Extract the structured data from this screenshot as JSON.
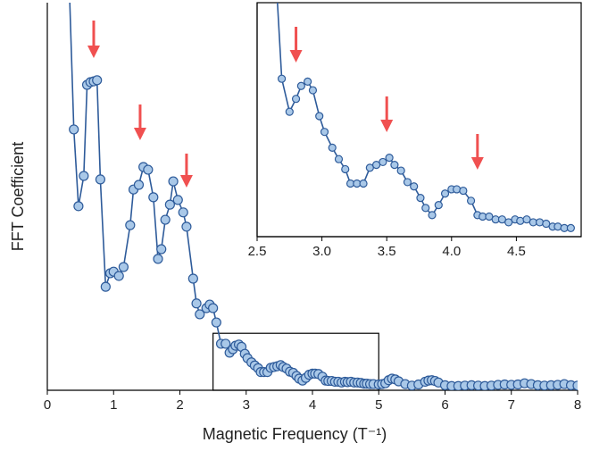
{
  "chart_data": [
    {
      "type": "line",
      "x_label": "Magnetic Frequency (T⁻¹)",
      "y_label": "FFT Coefficient",
      "xlim": [
        0,
        8
      ],
      "ylim": [
        0,
        100
      ],
      "xticks": [
        0,
        1,
        2,
        3,
        4,
        5,
        6,
        7,
        8
      ],
      "series": [
        {
          "color": "#2e5b9a",
          "marker_fill": "#a9c8e8",
          "x": [
            0.33,
            0.4,
            0.47,
            0.55,
            0.6,
            0.65,
            0.7,
            0.75,
            0.8,
            0.88,
            0.95,
            1.0,
            1.08,
            1.15,
            1.25,
            1.3,
            1.38,
            1.45,
            1.52,
            1.6,
            1.67,
            1.72,
            1.78,
            1.85,
            1.9,
            1.97,
            2.05,
            2.1,
            2.2,
            2.25,
            2.3,
            2.4,
            2.45,
            2.5,
            2.55,
            2.62,
            2.69,
            2.75,
            2.8,
            2.84,
            2.89,
            2.93,
            2.98,
            3.02,
            3.08,
            3.13,
            3.18,
            3.22,
            3.27,
            3.32,
            3.37,
            3.42,
            3.47,
            3.52,
            3.56,
            3.61,
            3.66,
            3.71,
            3.76,
            3.8,
            3.85,
            3.9,
            3.95,
            4.0,
            4.04,
            4.09,
            4.15,
            4.2,
            4.24,
            4.29,
            4.34,
            4.39,
            4.44,
            4.49,
            4.53,
            4.58,
            4.63,
            4.68,
            4.73,
            4.78,
            4.82,
            4.87,
            4.92,
            5.0,
            5.05,
            5.1,
            5.15,
            5.2,
            5.25,
            5.3,
            5.4,
            5.5,
            5.6,
            5.7,
            5.75,
            5.8,
            5.85,
            5.9,
            6.0,
            6.1,
            6.2,
            6.3,
            6.4,
            6.5,
            6.6,
            6.7,
            6.8,
            6.9,
            7.0,
            7.1,
            7.2,
            7.3,
            7.4,
            7.5,
            7.6,
            7.7,
            7.8,
            7.9,
            8.0
          ],
          "values": [
            105,
            67.3,
            47.5,
            55.3,
            78.8,
            79.5,
            79.7,
            80,
            54.4,
            26.7,
            30.2,
            30.6,
            29.5,
            31.8,
            42.6,
            51.8,
            53,
            57.6,
            56.9,
            49.8,
            33.9,
            36.4,
            44,
            47.9,
            53.9,
            49.1,
            45.9,
            42.2,
            28.8,
            22.4,
            19.6,
            21.2,
            22.1,
            21.2,
            17.5,
            12,
            12,
            9.7,
            10.6,
            11.5,
            11.8,
            11.2,
            9.4,
            8.3,
            7.2,
            6.4,
            5.7,
            4.7,
            4.7,
            4.7,
            5.8,
            6,
            6.2,
            6.5,
            6,
            5.6,
            4.8,
            4.5,
            3.7,
            3,
            2.5,
            3.2,
            4,
            4.3,
            4.3,
            4.2,
            3.5,
            2.5,
            2.4,
            2.4,
            2.2,
            2.2,
            2,
            2.2,
            2.1,
            2.2,
            2,
            2,
            1.9,
            1.7,
            1.7,
            1.6,
            1.6,
            1.5,
            1.6,
            1.8,
            2.6,
            3,
            2.8,
            2.3,
            1.6,
            1.2,
            1.5,
            2.2,
            2.5,
            2.6,
            2.4,
            2,
            1.3,
            1.1,
            1.1,
            1.2,
            1.3,
            1.2,
            1.1,
            1.2,
            1.4,
            1.5,
            1.4,
            1.5,
            1.8,
            1.6,
            1.3,
            1.2,
            1.3,
            1.4,
            1.6,
            1.3,
            1.2
          ]
        }
      ],
      "arrows_x": [
        0.7,
        1.4,
        2.1
      ],
      "arrow_color": "#f05050",
      "zoom_box": {
        "x": [
          2.5,
          5
        ],
        "y": [
          0,
          14.7
        ]
      }
    },
    {
      "type": "line",
      "xlim": [
        2.5,
        5
      ],
      "ylim": [
        1,
        17.3
      ],
      "xticks": [
        2.5,
        3.0,
        3.5,
        4.0,
        4.5
      ],
      "series": [
        {
          "color": "#2e5b9a",
          "marker_fill": "#a9c8e8",
          "x": [
            2.64,
            2.69,
            2.75,
            2.8,
            2.84,
            2.89,
            2.93,
            2.98,
            3.02,
            3.08,
            3.13,
            3.18,
            3.22,
            3.27,
            3.32,
            3.37,
            3.42,
            3.47,
            3.52,
            3.56,
            3.61,
            3.66,
            3.71,
            3.76,
            3.8,
            3.85,
            3.9,
            3.95,
            4.0,
            4.04,
            4.09,
            4.15,
            4.2,
            4.24,
            4.29,
            4.34,
            4.39,
            4.44,
            4.49,
            4.53,
            4.58,
            4.63,
            4.68,
            4.73,
            4.78,
            4.82,
            4.87,
            4.92
          ],
          "values": [
            20,
            12,
            9.7,
            10.6,
            11.5,
            11.8,
            11.2,
            9.4,
            8.3,
            7.2,
            6.4,
            5.7,
            4.7,
            4.7,
            4.7,
            5.8,
            6,
            6.2,
            6.5,
            6,
            5.6,
            4.8,
            4.5,
            3.7,
            3,
            2.5,
            3.2,
            4,
            4.3,
            4.3,
            4.2,
            3.5,
            2.5,
            2.4,
            2.4,
            2.2,
            2.2,
            2,
            2.2,
            2.1,
            2.2,
            2,
            2,
            1.9,
            1.7,
            1.7,
            1.6,
            1.6
          ]
        }
      ],
      "arrows_x": [
        2.8,
        3.5,
        4.2
      ],
      "arrow_color": "#f05050"
    }
  ]
}
